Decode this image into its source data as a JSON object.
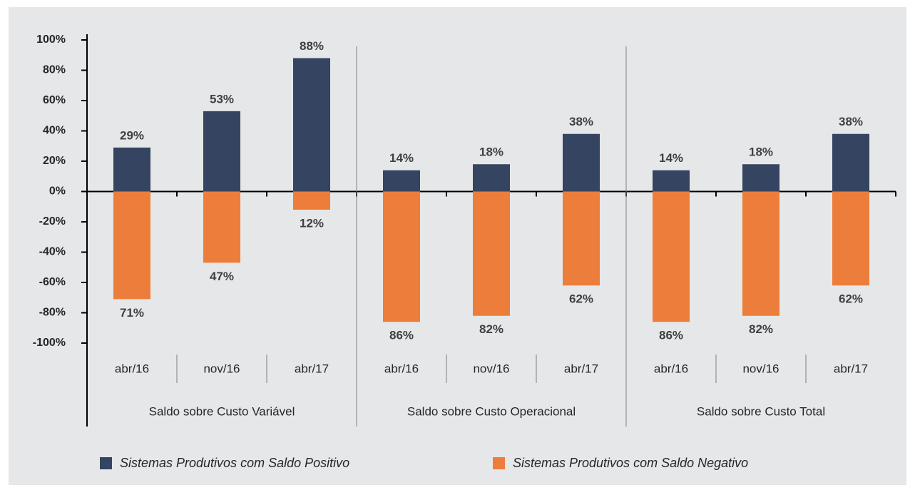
{
  "chart_data": {
    "type": "bar",
    "categories": [
      "abr/16",
      "nov/16",
      "abr/17",
      "abr/16",
      "nov/16",
      "abr/17",
      "abr/16",
      "nov/16",
      "abr/17"
    ],
    "groups": [
      "Saldo sobre Custo Variável",
      "Saldo sobre Custo Operacional",
      "Saldo sobre Custo Total"
    ],
    "series": [
      {
        "name": "Sistemas Produtivos com Saldo Positivo",
        "color": "#354561",
        "values": [
          29,
          53,
          88,
          14,
          18,
          38,
          14,
          18,
          38
        ],
        "value_labels": [
          "29%",
          "53%",
          "88%",
          "14%",
          "18%",
          "38%",
          "14%",
          "18%",
          "38%"
        ]
      },
      {
        "name": "Sistemas Produtivos com Saldo Negativo",
        "color": "#ed7d3b",
        "values": [
          -71,
          -47,
          -12,
          -86,
          -82,
          -62,
          -86,
          -82,
          -62
        ],
        "value_labels": [
          "71%",
          "47%",
          "12%",
          "86%",
          "82%",
          "62%",
          "86%",
          "82%",
          "62%"
        ]
      }
    ],
    "ylim": [
      -100,
      100
    ],
    "yticks": [
      {
        "value": 100,
        "label": "100%"
      },
      {
        "value": 80,
        "label": "80%"
      },
      {
        "value": 60,
        "label": "60%"
      },
      {
        "value": 40,
        "label": "40%"
      },
      {
        "value": 20,
        "label": "20%"
      },
      {
        "value": 0,
        "label": "0%"
      },
      {
        "value": -20,
        "label": "-20%"
      },
      {
        "value": -40,
        "label": "-40%"
      },
      {
        "value": -60,
        "label": "-60%"
      },
      {
        "value": -80,
        "label": "-80%"
      },
      {
        "value": -100,
        "label": "-100%"
      }
    ]
  }
}
